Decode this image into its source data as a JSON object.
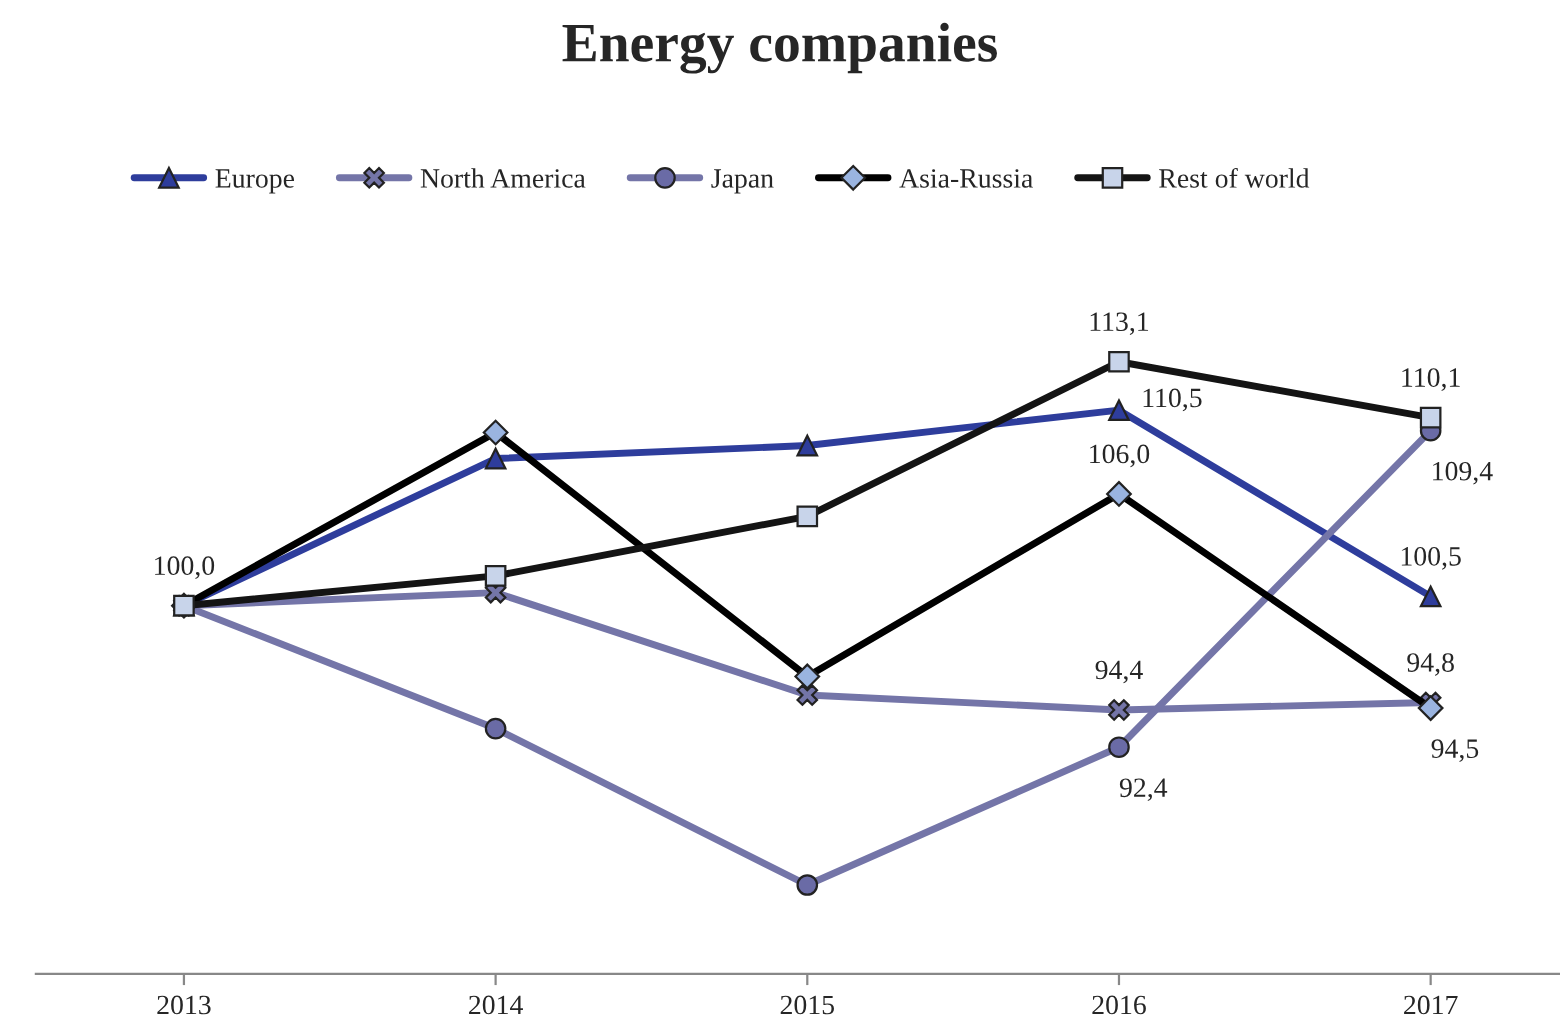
{
  "chart_data": {
    "type": "line",
    "title": "Energy companies",
    "categories": [
      "2013",
      "2014",
      "2015",
      "2016",
      "2017"
    ],
    "series": [
      {
        "name": "Europe",
        "color": "#2e3d9c",
        "marker": "triangle",
        "values": [
          100.0,
          107.9,
          108.6,
          110.5,
          100.5
        ],
        "value_labels": [
          "100,0",
          null,
          null,
          "110,5",
          "100,5"
        ]
      },
      {
        "name": "North America",
        "color": "#7475a8",
        "marker": "cross",
        "values": [
          100.0,
          100.7,
          95.2,
          94.4,
          94.8
        ],
        "value_labels": [
          null,
          null,
          null,
          "94,4",
          "94,8"
        ]
      },
      {
        "name": "Japan",
        "color": "#7475a8",
        "marker": "circle",
        "values": [
          100.0,
          93.4,
          85.0,
          92.4,
          109.4
        ],
        "value_labels": [
          null,
          null,
          null,
          "92,4",
          "109,4"
        ]
      },
      {
        "name": "Asia-Russia",
        "color": "#000000",
        "marker": "diamond",
        "values": [
          100.0,
          109.3,
          96.2,
          106.0,
          94.5
        ],
        "value_labels": [
          null,
          null,
          null,
          "106,0",
          "94,5"
        ]
      },
      {
        "name": "Rest of world",
        "color": "#141414",
        "marker": "square",
        "values": [
          100.0,
          101.6,
          104.8,
          113.1,
          110.1
        ],
        "value_labels": [
          null,
          null,
          null,
          "113,1",
          "110,1"
        ]
      }
    ],
    "tick_labels": "x",
    "grid": false,
    "legend": "top left",
    "line_style": "solid"
  }
}
